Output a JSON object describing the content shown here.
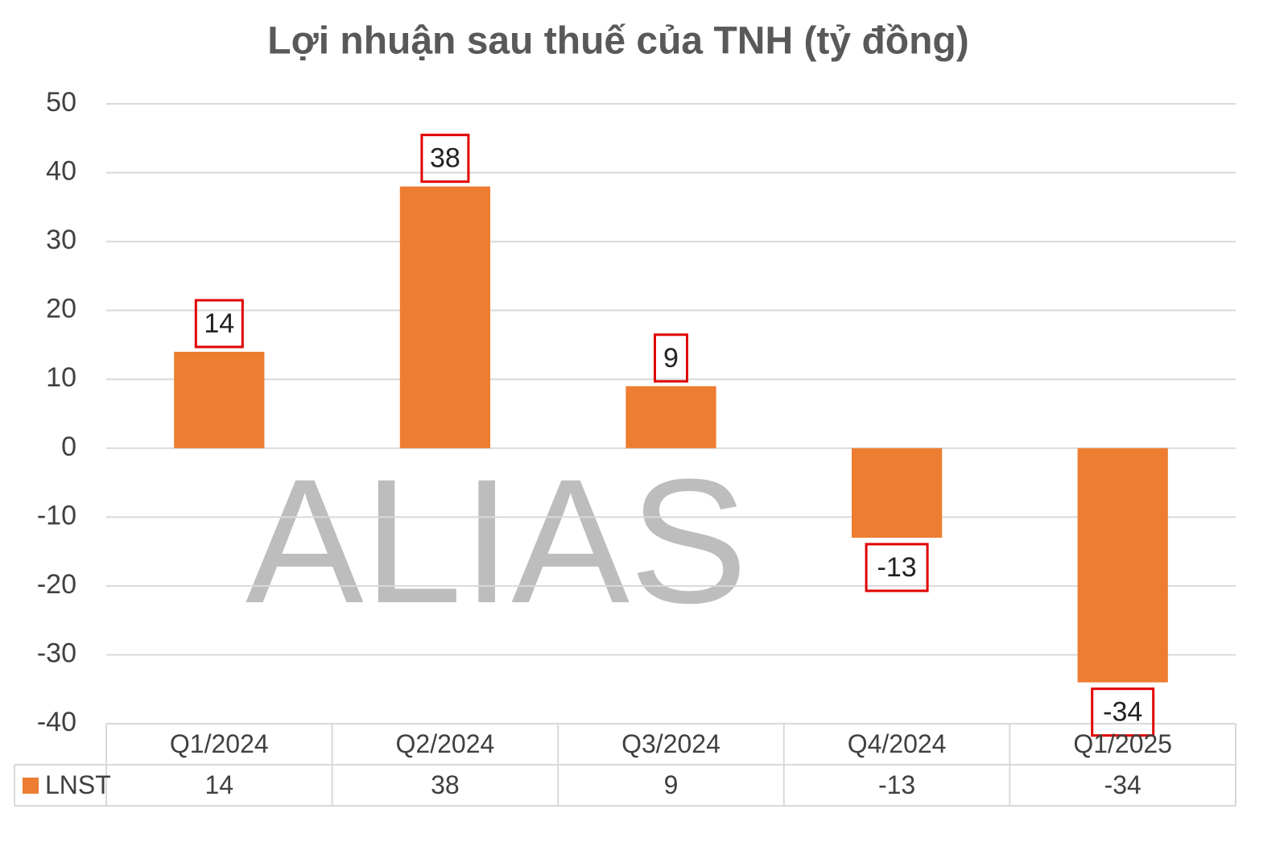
{
  "chart_data": {
    "type": "bar",
    "title": "Lợi nhuận sau thuế của TNH (tỷ đồng)",
    "watermark": "ALIAS",
    "categories": [
      "Q1/2024",
      "Q2/2024",
      "Q3/2024",
      "Q4/2024",
      "Q1/2025"
    ],
    "series": [
      {
        "name": "LNST",
        "color": "#ed7d31",
        "values": [
          14,
          38,
          9,
          -13,
          -34
        ]
      }
    ],
    "ylim": [
      -40,
      50
    ],
    "yticks": [
      -40,
      -30,
      -20,
      -10,
      0,
      10,
      20,
      30,
      40,
      50
    ],
    "grid": true,
    "data_table": true
  }
}
